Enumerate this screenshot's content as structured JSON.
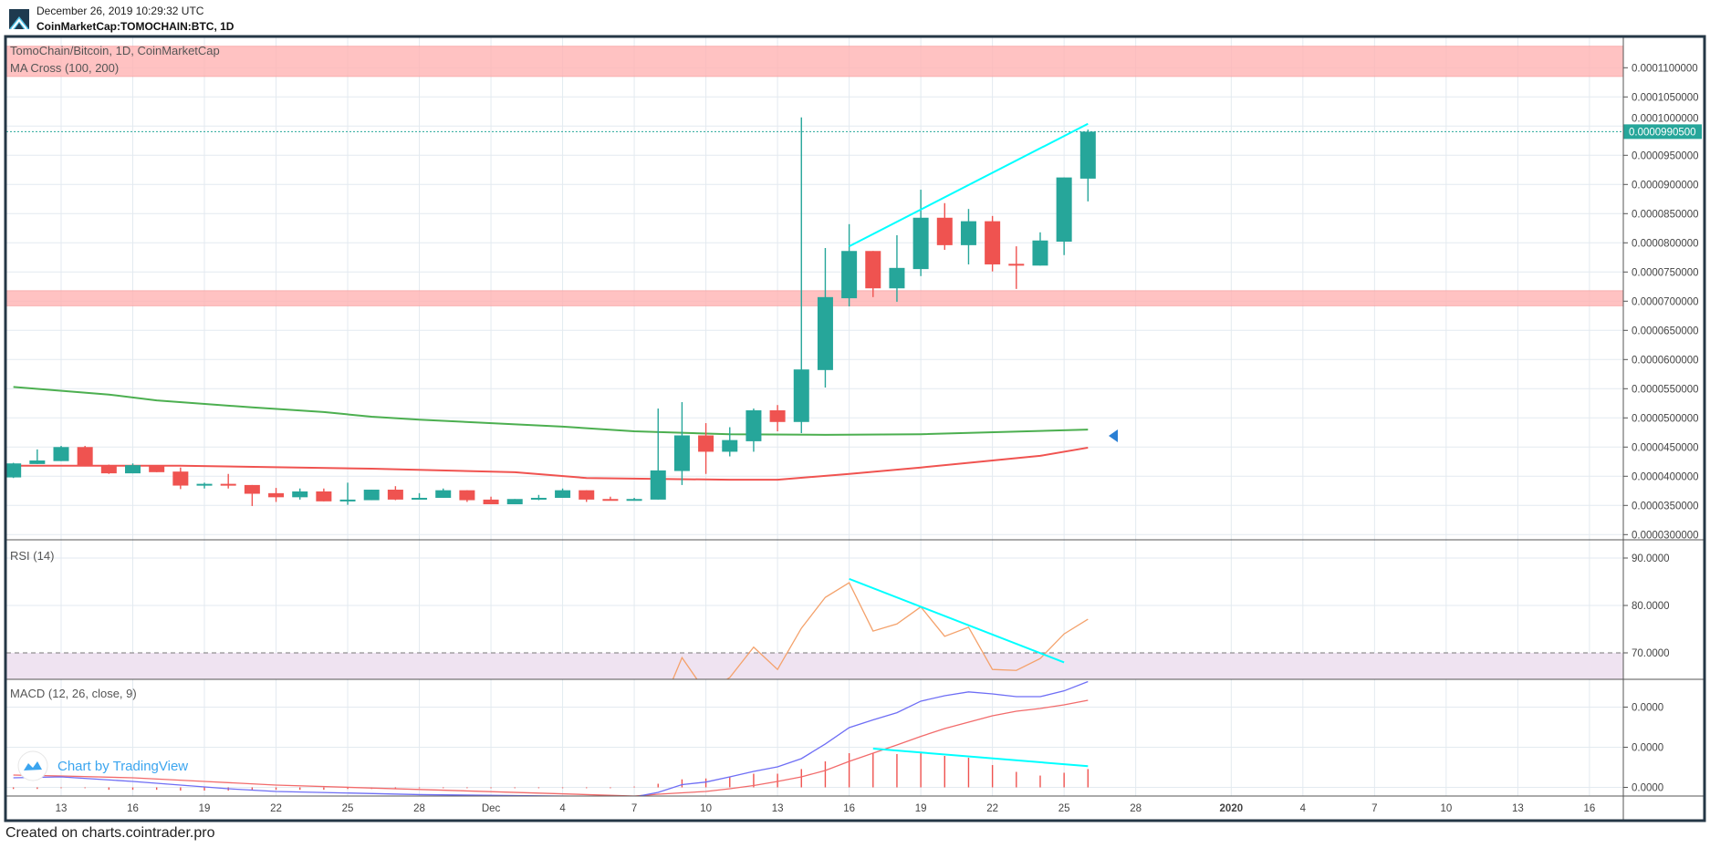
{
  "header": {
    "datetime": "December 26, 2019 10:29:32 UTC",
    "symbol": "CoinMarketCap:TOMOCHAIN:BTC, 1D"
  },
  "footer": {
    "text": "Created on charts.cointrader.pro"
  },
  "watermark": {
    "text": "Chart by TradingView",
    "color": "#3ba5ef"
  },
  "colors": {
    "up": "#26a69a",
    "down": "#ef5350",
    "trendline": "#00ffff",
    "zone": "#ffb3b3",
    "rsi_band": "#efe3f1",
    "rsi_line": "#f4a26c",
    "macd_line": "#6e6ef5",
    "signal_line": "#f26b6b",
    "histogram": "#ef5350",
    "frame": "#253746",
    "marker": "#2a7fd4"
  },
  "chart_data": [
    {
      "type": "candlestick",
      "title": "TomoChain/Bitcoin, 1D, CoinMarketCap",
      "indicator_label": "MA Cross (100, 200)",
      "ylim": [
        3e-05,
        0.0001135
      ],
      "grid": true,
      "price_axis": {
        "ticks": [
          "0.0001100000",
          "0.0001050000",
          "0.0001000000",
          "0.0000950000",
          "0.0000900000",
          "0.0000850000",
          "0.0000800000",
          "0.0000750000",
          "0.0000700000",
          "0.0000650000",
          "0.0000600000",
          "0.0000550000",
          "0.0000500000",
          "0.0000450000",
          "0.0000400000",
          "0.0000350000",
          "0.0000300000"
        ]
      },
      "last_price": {
        "label": "0.0000990500",
        "value": 9.905e-05
      },
      "time_axis": [
        {
          "date": "2019-11-13",
          "label": "13"
        },
        {
          "date": "2019-11-16",
          "label": "16"
        },
        {
          "date": "2019-11-19",
          "label": "19"
        },
        {
          "date": "2019-11-22",
          "label": "22"
        },
        {
          "date": "2019-11-25",
          "label": "25"
        },
        {
          "date": "2019-11-28",
          "label": "28"
        },
        {
          "date": "2019-12-01",
          "label": "Dec"
        },
        {
          "date": "2019-12-04",
          "label": "4"
        },
        {
          "date": "2019-12-07",
          "label": "7"
        },
        {
          "date": "2019-12-10",
          "label": "10"
        },
        {
          "date": "2019-12-13",
          "label": "13"
        },
        {
          "date": "2019-12-16",
          "label": "16"
        },
        {
          "date": "2019-12-19",
          "label": "19"
        },
        {
          "date": "2019-12-22",
          "label": "22"
        },
        {
          "date": "2019-12-25",
          "label": "25"
        },
        {
          "date": "2019-12-28",
          "label": "28"
        },
        {
          "date": "2020-01-01",
          "label": "2020"
        },
        {
          "date": "2020-01-04",
          "label": "4"
        },
        {
          "date": "2020-01-07",
          "label": "7"
        },
        {
          "date": "2020-01-10",
          "label": "10"
        },
        {
          "date": "2020-01-13",
          "label": "13"
        },
        {
          "date": "2020-01-16",
          "label": "16"
        }
      ],
      "zones": [
        [
          0.0001085,
          0.0001137
        ],
        [
          6.92e-05,
          7.18e-05
        ]
      ],
      "candles_ohlc": [
        [
          "2019-11-11",
          3.98e-05,
          4.23e-05,
          3.97e-05,
          4.22e-05
        ],
        [
          "2019-11-12",
          4.21e-05,
          4.46e-05,
          4.21e-05,
          4.27e-05
        ],
        [
          "2019-11-13",
          4.26e-05,
          4.52e-05,
          4.26e-05,
          4.5e-05
        ],
        [
          "2019-11-14",
          4.5e-05,
          4.52e-05,
          4.17e-05,
          4.18e-05
        ],
        [
          "2019-11-15",
          4.19e-05,
          4.2e-05,
          4.04e-05,
          4.05e-05
        ],
        [
          "2019-11-16",
          4.05e-05,
          4.22e-05,
          4.05e-05,
          4.19e-05
        ],
        [
          "2019-11-17",
          4.19e-05,
          4.19e-05,
          4.07e-05,
          4.07e-05
        ],
        [
          "2019-11-18",
          4.08e-05,
          4.15e-05,
          3.78e-05,
          3.84e-05
        ],
        [
          "2019-11-19",
          3.84e-05,
          3.89e-05,
          3.79e-05,
          3.87e-05
        ],
        [
          "2019-11-20",
          3.87e-05,
          4.04e-05,
          3.79e-05,
          3.84e-05
        ],
        [
          "2019-11-21",
          3.85e-05,
          3.85e-05,
          3.49e-05,
          3.7e-05
        ],
        [
          "2019-11-22",
          3.71e-05,
          3.8e-05,
          3.56e-05,
          3.64e-05
        ],
        [
          "2019-11-23",
          3.64e-05,
          3.79e-05,
          3.6e-05,
          3.74e-05
        ],
        [
          "2019-11-24",
          3.74e-05,
          3.79e-05,
          3.57e-05,
          3.57e-05
        ],
        [
          "2019-11-25",
          3.57e-05,
          3.89e-05,
          3.51e-05,
          3.6e-05
        ],
        [
          "2019-11-26",
          3.59e-05,
          3.77e-05,
          3.59e-05,
          3.77e-05
        ],
        [
          "2019-11-27",
          3.77e-05,
          3.83e-05,
          3.59e-05,
          3.6e-05
        ],
        [
          "2019-11-28",
          3.6e-05,
          3.71e-05,
          3.6e-05,
          3.63e-05
        ],
        [
          "2019-11-29",
          3.63e-05,
          3.79e-05,
          3.63e-05,
          3.76e-05
        ],
        [
          "2019-11-30",
          3.76e-05,
          3.76e-05,
          3.56e-05,
          3.59e-05
        ],
        [
          "2019-12-01",
          3.6e-05,
          3.65e-05,
          3.52e-05,
          3.52e-05
        ],
        [
          "2019-12-02",
          3.52e-05,
          3.61e-05,
          3.52e-05,
          3.61e-05
        ],
        [
          "2019-12-03",
          3.6e-05,
          3.68e-05,
          3.59e-05,
          3.63e-05
        ],
        [
          "2019-12-04",
          3.63e-05,
          3.79e-05,
          3.63e-05,
          3.76e-05
        ],
        [
          "2019-12-05",
          3.76e-05,
          3.76e-05,
          3.56e-05,
          3.6e-05
        ],
        [
          "2019-12-06",
          3.61e-05,
          3.65e-05,
          3.59e-05,
          3.59e-05
        ],
        [
          "2019-12-07",
          3.59e-05,
          3.63e-05,
          3.59e-05,
          3.61e-05
        ],
        [
          "2019-12-08",
          3.6e-05,
          5.16e-05,
          3.6e-05,
          4.1e-05
        ],
        [
          "2019-12-09",
          4.09e-05,
          5.27e-05,
          3.85e-05,
          4.7e-05
        ],
        [
          "2019-12-10",
          4.7e-05,
          4.91e-05,
          4.04e-05,
          4.42e-05
        ],
        [
          "2019-12-11",
          4.42e-05,
          4.84e-05,
          4.34e-05,
          4.62e-05
        ],
        [
          "2019-12-12",
          4.6e-05,
          5.16e-05,
          4.42e-05,
          5.13e-05
        ],
        [
          "2019-12-13",
          5.13e-05,
          5.22e-05,
          4.77e-05,
          4.93e-05
        ],
        [
          "2019-12-14",
          4.93e-05,
          0.0001015,
          4.74e-05,
          5.83e-05
        ],
        [
          "2019-12-15",
          5.82e-05,
          7.91e-05,
          5.52e-05,
          7.07e-05
        ],
        [
          "2019-12-16",
          7.05e-05,
          8.32e-05,
          6.91e-05,
          7.86e-05
        ],
        [
          "2019-12-17",
          7.86e-05,
          7.86e-05,
          7.07e-05,
          7.22e-05
        ],
        [
          "2019-12-18",
          7.22e-05,
          8.13e-05,
          6.99e-05,
          7.57e-05
        ],
        [
          "2019-12-19",
          7.55e-05,
          8.91e-05,
          7.43e-05,
          8.43e-05
        ],
        [
          "2019-12-20",
          8.43e-05,
          8.68e-05,
          7.88e-05,
          7.96e-05
        ],
        [
          "2019-12-21",
          7.96e-05,
          8.58e-05,
          7.63e-05,
          8.37e-05
        ],
        [
          "2019-12-22",
          8.37e-05,
          8.46e-05,
          7.51e-05,
          7.63e-05
        ],
        [
          "2019-12-23",
          7.64e-05,
          7.94e-05,
          7.21e-05,
          7.61e-05
        ],
        [
          "2019-12-24",
          7.61e-05,
          8.18e-05,
          7.61e-05,
          8.04e-05
        ],
        [
          "2019-12-25",
          8.02e-05,
          9.12e-05,
          7.79e-05,
          9.12e-05
        ],
        [
          "2019-12-26",
          9.1e-05,
          9.94e-05,
          8.71e-05,
          9.905e-05
        ]
      ],
      "ma_lines": [
        {
          "color": "#4caf50",
          "points": [
            [
              "2019-11-11",
              5.53e-05
            ],
            [
              "2019-11-15",
              5.4e-05
            ],
            [
              "2019-11-17",
              5.3e-05
            ],
            [
              "2019-11-21",
              5.18e-05
            ],
            [
              "2019-11-24",
              5.1e-05
            ],
            [
              "2019-11-26",
              5.02e-05
            ],
            [
              "2019-11-28",
              4.97e-05
            ],
            [
              "2019-12-04",
              4.85e-05
            ],
            [
              "2019-12-07",
              4.77e-05
            ],
            [
              "2019-12-11",
              4.72e-05
            ],
            [
              "2019-12-15",
              4.71e-05
            ],
            [
              "2019-12-19",
              4.72e-05
            ],
            [
              "2019-12-26",
              4.8e-05
            ]
          ]
        },
        {
          "color": "#f05350",
          "points": [
            [
              "2019-11-11",
              4.18e-05
            ],
            [
              "2019-11-18",
              4.18e-05
            ],
            [
              "2019-11-26",
              4.13e-05
            ],
            [
              "2019-12-02",
              4.07e-05
            ],
            [
              "2019-12-05",
              3.97e-05
            ],
            [
              "2019-12-11",
              3.94e-05
            ],
            [
              "2019-12-13",
              3.94e-05
            ],
            [
              "2019-12-16",
              4.04e-05
            ],
            [
              "2019-12-19",
              4.15e-05
            ],
            [
              "2019-12-24",
              4.35e-05
            ],
            [
              "2019-12-26",
              4.49e-05
            ]
          ]
        }
      ],
      "trendline": [
        [
          "2019-12-16",
          7.94e-05
        ],
        [
          "2019-12-26",
          0.0001004
        ]
      ],
      "marker": {
        "shape": "triangle-left"
      }
    },
    {
      "type": "line",
      "title": "RSI (14)",
      "ticks": [
        {
          "value": 90,
          "label": "90.0000"
        },
        {
          "value": 80,
          "label": "80.0000"
        },
        {
          "value": 70,
          "label": "70.0000"
        }
      ],
      "overbought": 70,
      "values": [
        [
          "2019-12-08",
          57
        ],
        [
          "2019-12-09",
          69.0
        ],
        [
          "2019-12-10",
          61.7
        ],
        [
          "2019-12-11",
          64.8
        ],
        [
          "2019-12-12",
          71.2
        ],
        [
          "2019-12-13",
          66.5
        ],
        [
          "2019-12-14",
          75.2
        ],
        [
          "2019-12-15",
          81.7
        ],
        [
          "2019-12-16",
          84.8
        ],
        [
          "2019-12-17",
          74.6
        ],
        [
          "2019-12-18",
          76.1
        ],
        [
          "2019-12-19",
          79.7
        ],
        [
          "2019-12-20",
          73.5
        ],
        [
          "2019-12-21",
          75.4
        ],
        [
          "2019-12-22",
          66.5
        ],
        [
          "2019-12-23",
          66.3
        ],
        [
          "2019-12-24",
          68.8
        ],
        [
          "2019-12-25",
          74.0
        ],
        [
          "2019-12-26",
          77.1
        ]
      ],
      "trendline": [
        [
          "2019-12-16",
          85.6
        ],
        [
          "2019-12-25",
          68.0
        ]
      ]
    },
    {
      "type": "line",
      "title": "MACD (12, 26, close, 9)",
      "ticks": [
        {
          "value": 1e-05,
          "label": "0.0000"
        },
        {
          "value": 5e-06,
          "label": "0.0000"
        },
        {
          "value": 0,
          "label": "0.0000"
        }
      ],
      "macd": [
        [
          "2019-11-11",
          1.19e-06
        ],
        [
          "2019-11-13",
          1.31e-06
        ],
        [
          "2019-11-16",
          7.4e-07
        ],
        [
          "2019-11-18",
          2.8e-07
        ],
        [
          "2019-11-20",
          -1.7e-07
        ],
        [
          "2019-11-22",
          -5.1e-07
        ],
        [
          "2019-11-28",
          -9e-07
        ],
        [
          "2019-12-07",
          -1.19e-06
        ],
        [
          "2019-12-08",
          -6.2e-07
        ],
        [
          "2019-12-09",
          3.4e-07
        ],
        [
          "2019-12-10",
          6.6e-07
        ],
        [
          "2019-12-11",
          1.31e-06
        ],
        [
          "2019-12-12",
          1.99e-06
        ],
        [
          "2019-12-13",
          2.56e-06
        ],
        [
          "2019-12-14",
          3.58e-06
        ],
        [
          "2019-12-15",
          5.4e-06
        ],
        [
          "2019-12-16",
          7.44e-06
        ],
        [
          "2019-12-17",
          8.41e-06
        ],
        [
          "2019-12-18",
          9.3e-06
        ],
        [
          "2019-12-19",
          1.074e-05
        ],
        [
          "2019-12-20",
          1.142e-05
        ],
        [
          "2019-12-21",
          1.189e-05
        ],
        [
          "2019-12-22",
          1.164e-05
        ],
        [
          "2019-12-23",
          1.13e-05
        ],
        [
          "2019-12-24",
          1.13e-05
        ],
        [
          "2019-12-25",
          1.202e-05
        ],
        [
          "2019-12-26",
          1.318e-05
        ]
      ],
      "signal": [
        [
          "2019-11-11",
          1.53e-06
        ],
        [
          "2019-11-13",
          1.42e-06
        ],
        [
          "2019-11-16",
          1.19e-06
        ],
        [
          "2019-11-19",
          7.4e-07
        ],
        [
          "2019-11-22",
          2.8e-07
        ],
        [
          "2019-12-07",
          -1.08e-06
        ],
        [
          "2019-12-08",
          -8.5e-07
        ],
        [
          "2019-12-09",
          -6.8e-07
        ],
        [
          "2019-12-10",
          -5.1e-07
        ],
        [
          "2019-12-11",
          -1.7e-07
        ],
        [
          "2019-12-12",
          2.3e-07
        ],
        [
          "2019-12-13",
          7.4e-07
        ],
        [
          "2019-12-14",
          1.31e-06
        ],
        [
          "2019-12-15",
          2.1e-06
        ],
        [
          "2019-12-16",
          3.24e-06
        ],
        [
          "2019-12-17",
          4.26e-06
        ],
        [
          "2019-12-18",
          5.28e-06
        ],
        [
          "2019-12-19",
          6.35e-06
        ],
        [
          "2019-12-20",
          7.33e-06
        ],
        [
          "2019-12-21",
          8.12e-06
        ],
        [
          "2019-12-22",
          8.92e-06
        ],
        [
          "2019-12-23",
          9.49e-06
        ],
        [
          "2019-12-24",
          9.83e-06
        ],
        [
          "2019-12-25",
          1.028e-05
        ],
        [
          "2019-12-26",
          1.085e-05
        ]
      ],
      "histogram": [
        [
          "2019-11-11",
          -2e-07
        ],
        [
          "2019-11-12",
          -2e-07
        ],
        [
          "2019-11-13",
          -1e-07
        ],
        [
          "2019-11-14",
          -1e-07
        ],
        [
          "2019-11-15",
          -3e-07
        ],
        [
          "2019-11-16",
          -3e-07
        ],
        [
          "2019-11-17",
          -3e-07
        ],
        [
          "2019-11-18",
          -4e-07
        ],
        [
          "2019-11-19",
          -4e-07
        ],
        [
          "2019-11-20",
          -4e-07
        ],
        [
          "2019-11-21",
          -4e-07
        ],
        [
          "2019-11-22",
          -3e-07
        ],
        [
          "2019-11-23",
          -3e-07
        ],
        [
          "2019-11-24",
          -3e-07
        ],
        [
          "2019-11-25",
          -2e-07
        ],
        [
          "2019-11-26",
          -2e-07
        ],
        [
          "2019-11-27",
          -2e-07
        ],
        [
          "2019-11-28",
          -1e-07
        ],
        [
          "2019-11-29",
          -1e-07
        ],
        [
          "2019-11-30",
          -1e-07
        ],
        [
          "2019-12-01",
          -1e-07
        ],
        [
          "2019-12-02",
          -1e-07
        ],
        [
          "2019-12-03",
          -1e-07
        ],
        [
          "2019-12-04",
          -1e-07
        ],
        [
          "2019-12-05",
          -1e-07
        ],
        [
          "2019-12-06",
          -1e-07
        ],
        [
          "2019-12-07",
          1e-07
        ],
        [
          "2019-12-08",
          4.5e-07
        ],
        [
          "2019-12-09",
          1e-06
        ],
        [
          "2019-12-10",
          1.11e-06
        ],
        [
          "2019-12-11",
          1.31e-06
        ],
        [
          "2019-12-12",
          1.7e-06
        ],
        [
          "2019-12-13",
          1.7e-06
        ],
        [
          "2019-12-14",
          2.28e-06
        ],
        [
          "2019-12-15",
          3.24e-06
        ],
        [
          "2019-12-16",
          4.26e-06
        ],
        [
          "2019-12-17",
          4.23e-06
        ],
        [
          "2019-12-18",
          4.15e-06
        ],
        [
          "2019-12-19",
          4.43e-06
        ],
        [
          "2019-12-20",
          3.92e-06
        ],
        [
          "2019-12-21",
          3.69e-06
        ],
        [
          "2019-12-22",
          2.78e-06
        ],
        [
          "2019-12-23",
          1.93e-06
        ],
        [
          "2019-12-24",
          1.47e-06
        ],
        [
          "2019-12-25",
          1.82e-06
        ],
        [
          "2019-12-26",
          2.28e-06
        ]
      ],
      "trendline": [
        [
          "2019-12-17",
          4.83e-06
        ],
        [
          "2019-12-26",
          2.64e-06
        ]
      ]
    }
  ]
}
